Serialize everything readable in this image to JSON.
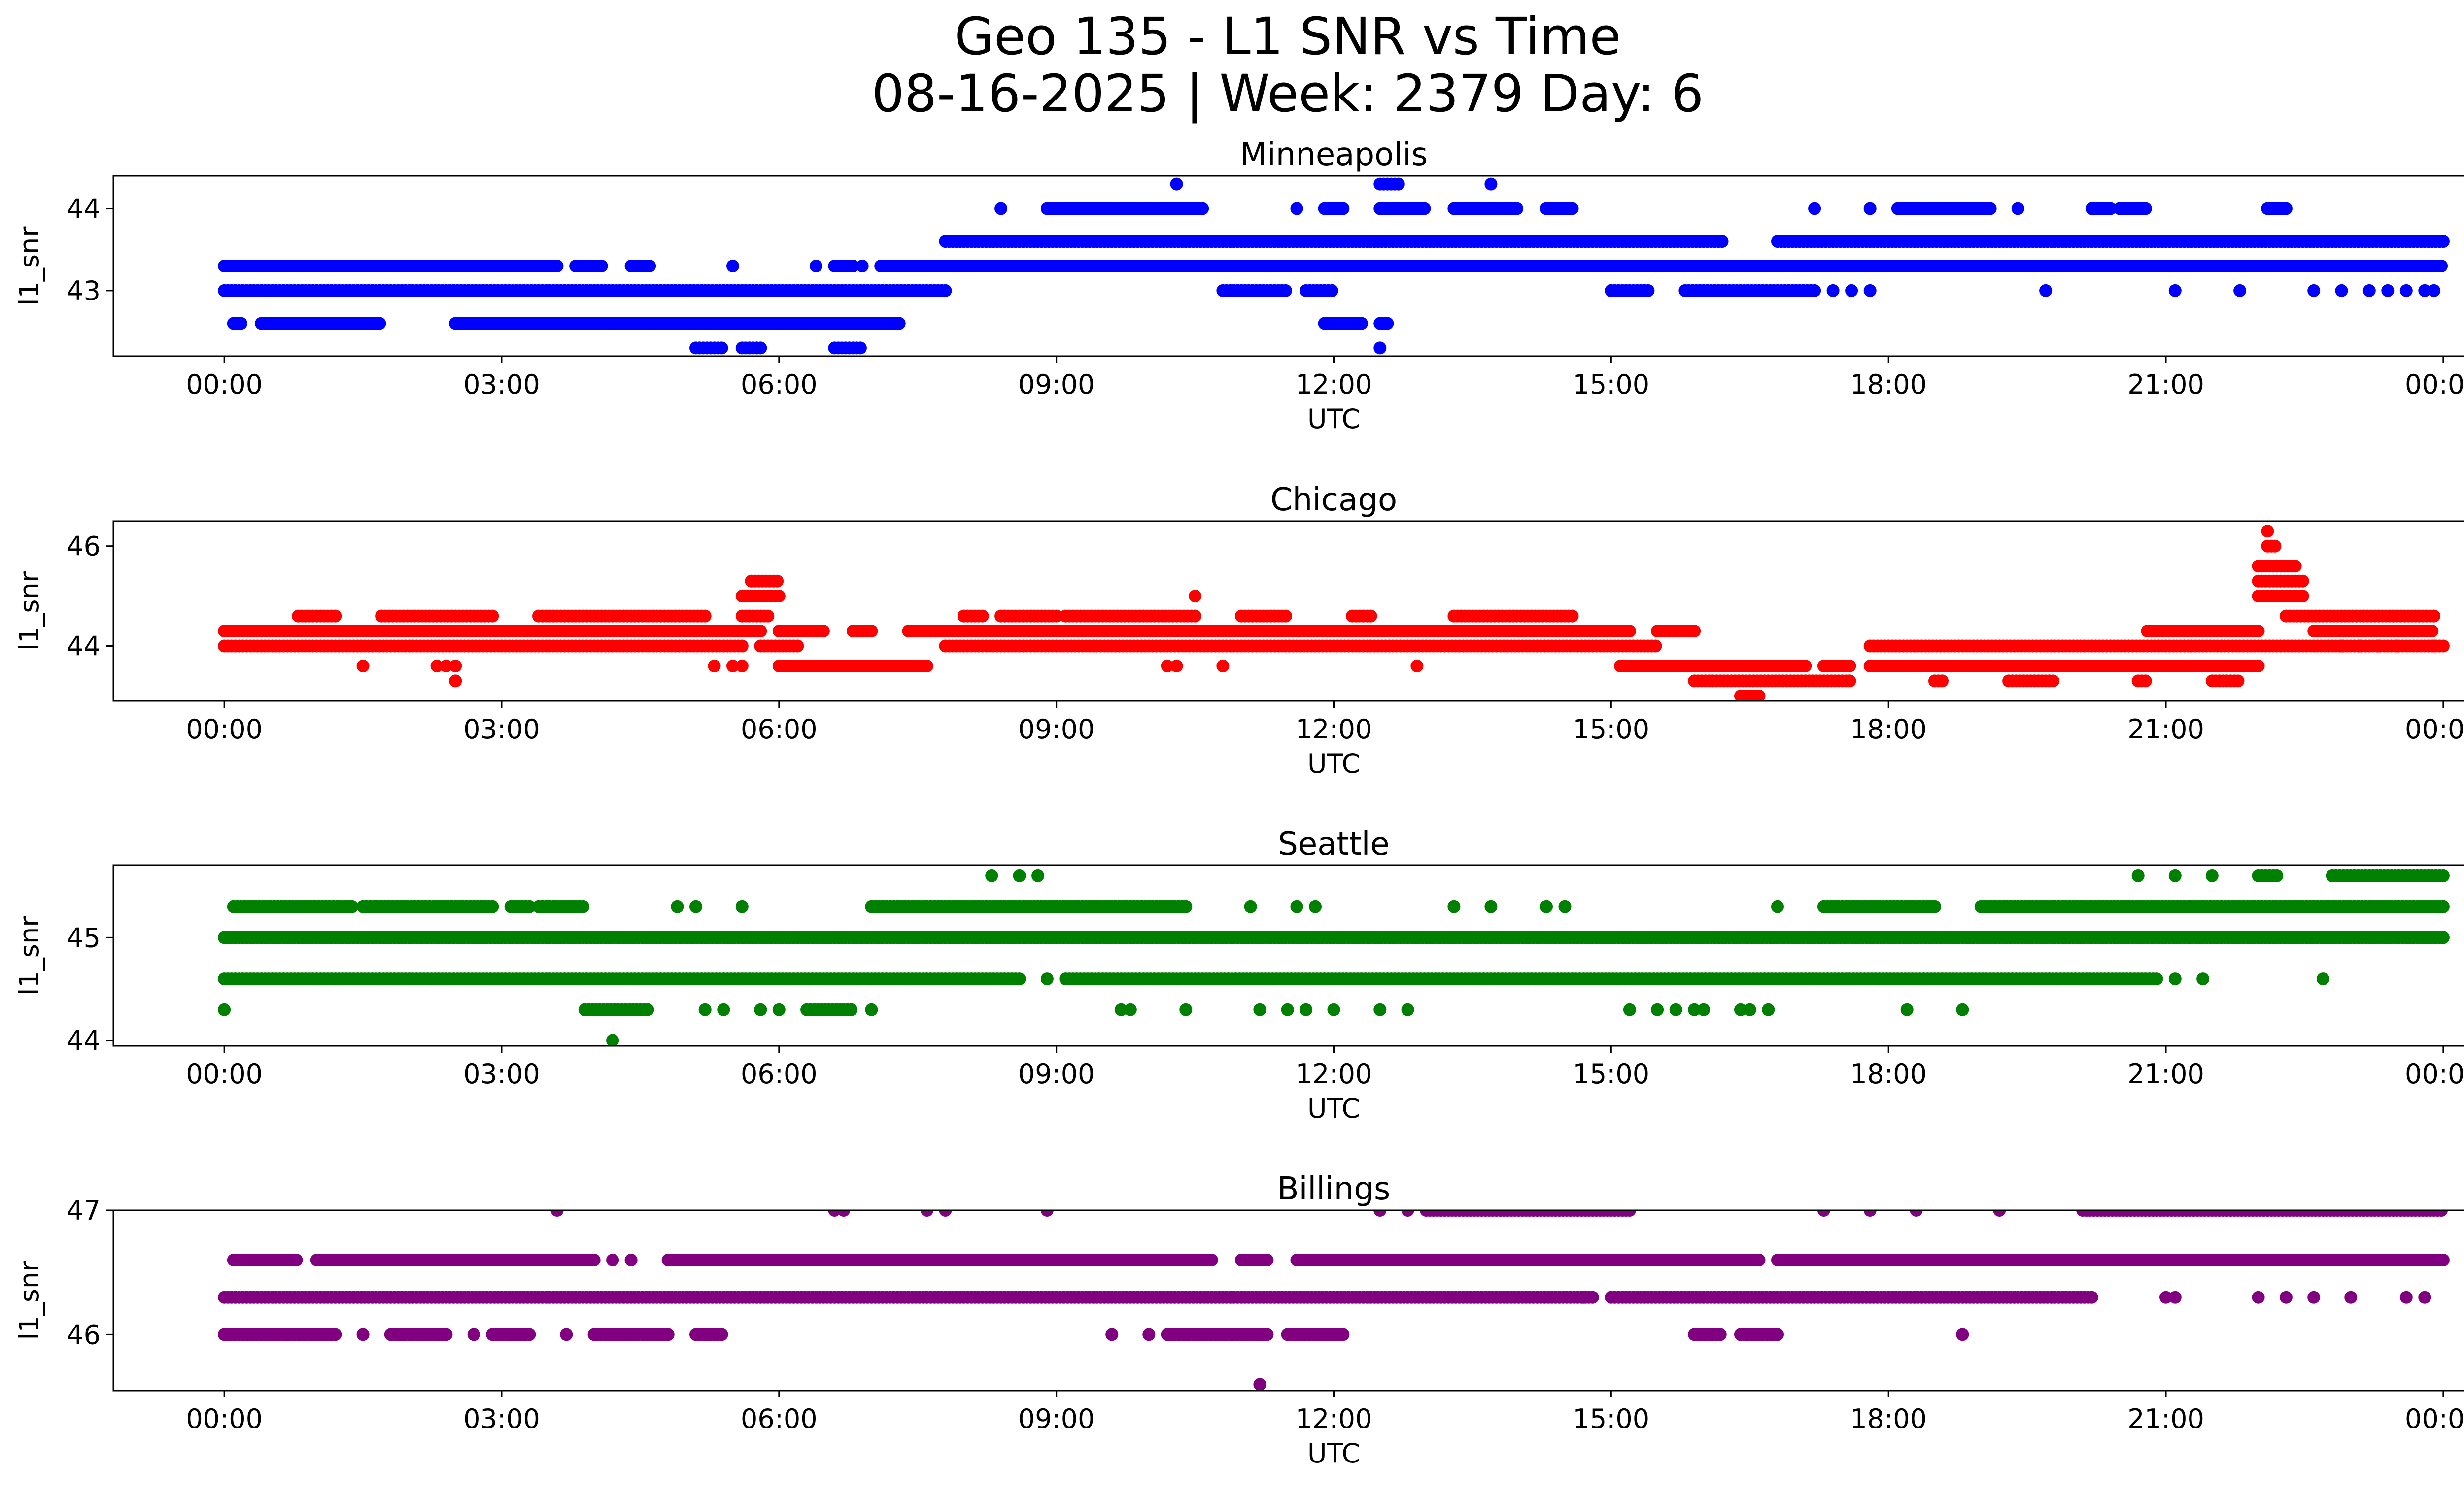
{
  "chart_data": {
    "type": "scatter",
    "title": "Geo 135 - L1 SNR vs Time",
    "subtitle": "08-16-2025 | Week: 2379 Day: 6",
    "xlabel": "UTC",
    "ylabel": "l1_snr",
    "x_unit": "hours UTC",
    "x_range": [
      -1.2,
      25.2
    ],
    "x_ticks": [
      0,
      3,
      6,
      9,
      12,
      15,
      18,
      21,
      24
    ],
    "x_tick_labels": [
      "00:00",
      "03:00",
      "06:00",
      "09:00",
      "12:00",
      "15:00",
      "18:00",
      "21:00",
      "00:00"
    ],
    "panels": [
      {
        "title": "Minneapolis",
        "color": "#0000ff",
        "ylim": [
          42.2,
          44.4
        ],
        "yticks": [
          43,
          44
        ],
        "ytick_labels": [
          "43",
          "44"
        ],
        "segments": [
          {
            "y": 43.3,
            "ranges": [
              [
                0,
                3.6
              ],
              [
                3.8,
                4.1
              ],
              [
                4.4,
                4.6
              ],
              [
                6.6,
                6.8
              ],
              [
                7.1,
                24
              ]
            ]
          },
          {
            "y": 43.0,
            "ranges": [
              [
                0,
                7.8
              ],
              [
                10.8,
                11.5
              ],
              [
                11.7,
                12.0
              ],
              [
                15.0,
                15.4
              ],
              [
                15.8,
                17.2
              ]
            ]
          },
          {
            "y": 42.6,
            "ranges": [
              [
                0.1,
                0.2
              ],
              [
                0.4,
                1.7
              ],
              [
                2.5,
                7.3
              ],
              [
                11.9,
                12.3
              ],
              [
                12.5,
                12.6
              ]
            ]
          },
          {
            "y": 42.3,
            "ranges": [
              [
                5.1,
                5.4
              ],
              [
                5.6,
                5.8
              ],
              [
                6.6,
                6.9
              ],
              [
                12.5,
                12.5
              ]
            ]
          },
          {
            "y": 43.6,
            "ranges": [
              [
                7.8,
                16.2
              ],
              [
                16.8,
                24
              ]
            ]
          },
          {
            "y": 44.0,
            "ranges": [
              [
                8.4,
                8.4
              ],
              [
                8.9,
                10.6
              ],
              [
                11.6,
                11.6
              ],
              [
                11.9,
                12.1
              ],
              [
                12.5,
                13.0
              ],
              [
                13.3,
                14.0
              ],
              [
                14.3,
                14.6
              ],
              [
                17.2,
                17.2
              ],
              [
                17.8,
                17.8
              ],
              [
                18.1,
                19.1
              ],
              [
                19.4,
                19.4
              ],
              [
                20.2,
                20.4
              ],
              [
                20.5,
                20.8
              ],
              [
                22.1,
                22.3
              ]
            ]
          },
          {
            "y": 44.3,
            "ranges": [
              [
                10.3,
                10.3
              ],
              [
                12.5,
                12.7
              ],
              [
                13.7,
                13.7
              ]
            ]
          }
        ],
        "scattered": [
          {
            "y": 43.0,
            "x": [
              17.4,
              17.6,
              17.8,
              19.7,
              21.1,
              21.8,
              22.6,
              22.9,
              23.2,
              23.4,
              23.6,
              23.8,
              23.9
            ]
          },
          {
            "y": 43.3,
            "x": [
              5.5,
              6.4,
              6.9
            ]
          }
        ]
      },
      {
        "title": "Chicago",
        "color": "#ff0000",
        "ylim": [
          42.9,
          46.5
        ],
        "yticks": [
          44,
          46
        ],
        "ytick_labels": [
          "44",
          "46"
        ],
        "segments": [
          {
            "y": 44.0,
            "ranges": [
              [
                0,
                5.6
              ],
              [
                5.8,
                6.2
              ],
              [
                7.8,
                15.5
              ],
              [
                17.8,
                24
              ]
            ]
          },
          {
            "y": 44.3,
            "ranges": [
              [
                0,
                5.8
              ],
              [
                6.0,
                6.5
              ],
              [
                6.8,
                7.0
              ],
              [
                7.4,
                15.2
              ],
              [
                15.5,
                15.9
              ],
              [
                20.8,
                22.0
              ],
              [
                22.6,
                23.9
              ]
            ]
          },
          {
            "y": 44.6,
            "ranges": [
              [
                0.8,
                1.2
              ],
              [
                1.7,
                2.9
              ],
              [
                3.4,
                5.2
              ],
              [
                5.6,
                5.9
              ],
              [
                8.0,
                8.2
              ],
              [
                8.4,
                9.0
              ],
              [
                9.1,
                10.5
              ],
              [
                11.0,
                11.5
              ],
              [
                12.2,
                12.4
              ],
              [
                13.3,
                14.6
              ],
              [
                22.3,
                23.9
              ]
            ]
          },
          {
            "y": 43.6,
            "ranges": [
              [
                6.0,
                7.6
              ],
              [
                15.1,
                17.1
              ],
              [
                17.3,
                17.6
              ],
              [
                17.8,
                22.0
              ]
            ]
          },
          {
            "y": 43.3,
            "ranges": [
              [
                15.9,
                17.6
              ],
              [
                18.5,
                18.6
              ],
              [
                19.3,
                19.8
              ],
              [
                20.7,
                20.8
              ],
              [
                21.5,
                21.8
              ]
            ]
          },
          {
            "y": 45.3,
            "ranges": [
              [
                5.7,
                6.0
              ]
            ]
          },
          {
            "y": 45.0,
            "ranges": [
              [
                5.6,
                6.0
              ],
              [
                22.0,
                22.5
              ]
            ]
          },
          {
            "y": 45.3,
            "ranges": [
              [
                22.0,
                22.5
              ]
            ]
          },
          {
            "y": 45.6,
            "ranges": [
              [
                22.0,
                22.4
              ]
            ]
          },
          {
            "y": 46.0,
            "ranges": [
              [
                22.1,
                22.2
              ]
            ]
          },
          {
            "y": 43.0,
            "ranges": [
              [
                16.4,
                16.6
              ]
            ]
          }
        ],
        "scattered": [
          {
            "y": 43.6,
            "x": [
              1.5,
              2.3,
              2.4,
              2.5,
              5.3,
              5.5,
              5.6,
              10.2,
              10.3,
              10.8,
              12.9
            ]
          },
          {
            "y": 43.3,
            "x": [
              2.5
            ]
          },
          {
            "y": 45.0,
            "x": [
              10.5
            ]
          },
          {
            "y": 46.3,
            "x": [
              22.1
            ]
          },
          {
            "y": 44.0,
            "x": [
              22.9,
              23.1,
              23.3,
              23.5,
              23.9
            ]
          }
        ]
      },
      {
        "title": "Seattle",
        "color": "#008000",
        "ylim": [
          43.95,
          45.7
        ],
        "yticks": [
          44,
          45
        ],
        "ytick_labels": [
          "44",
          "45"
        ],
        "segments": [
          {
            "y": 45.0,
            "ranges": [
              [
                0,
                24
              ]
            ]
          },
          {
            "y": 45.3,
            "ranges": [
              [
                0.1,
                1.4
              ],
              [
                1.5,
                2.9
              ],
              [
                3.1,
                3.3
              ],
              [
                3.4,
                3.9
              ],
              [
                7.0,
                10.4
              ],
              [
                17.3,
                18.5
              ],
              [
                19.0,
                24
              ]
            ]
          },
          {
            "y": 44.6,
            "ranges": [
              [
                0,
                8.6
              ],
              [
                9.1,
                20.9
              ]
            ]
          },
          {
            "y": 44.3,
            "ranges": [
              [
                3.9,
                4.6
              ],
              [
                6.3,
                6.8
              ]
            ]
          },
          {
            "y": 45.6,
            "ranges": [
              [
                20.7,
                20.7
              ],
              [
                22.0,
                22.2
              ],
              [
                22.8,
                24
              ]
            ]
          }
        ],
        "scattered": [
          {
            "y": 44.3,
            "x": [
              0,
              5.2,
              5.4,
              5.8,
              6.0,
              7.0,
              9.7,
              9.8,
              10.4,
              11.2,
              11.5,
              11.7,
              12.0,
              12.5,
              12.8,
              15.2,
              15.5,
              15.7,
              15.9,
              16.0,
              16.4,
              16.5,
              16.7,
              18.2,
              18.8
            ]
          },
          {
            "y": 45.3,
            "x": [
              4.9,
              5.1,
              5.6,
              11.1,
              11.6,
              11.8,
              13.3,
              13.7,
              14.3,
              14.5,
              16.8
            ]
          },
          {
            "y": 45.6,
            "x": [
              8.3,
              8.6,
              8.8,
              21.1,
              21.5
            ]
          },
          {
            "y": 44.6,
            "x": [
              8.9,
              21.1,
              21.4,
              22.7
            ]
          },
          {
            "y": 44.0,
            "x": [
              4.2
            ]
          }
        ]
      },
      {
        "title": "Billings",
        "color": "#800080",
        "ylim": [
          45.55,
          47.0
        ],
        "yticks": [
          46,
          47
        ],
        "ytick_labels": [
          "46",
          "47"
        ],
        "segments": [
          {
            "y": 46.3,
            "ranges": [
              [
                0,
                14.8
              ],
              [
                15.0,
                20.2
              ]
            ]
          },
          {
            "y": 46.6,
            "ranges": [
              [
                0.1,
                0.8
              ],
              [
                1.0,
                4.0
              ],
              [
                4.8,
                10.7
              ],
              [
                11.0,
                11.3
              ],
              [
                11.6,
                16.6
              ],
              [
                16.8,
                24
              ]
            ]
          },
          {
            "y": 46.0,
            "ranges": [
              [
                0,
                1.2
              ],
              [
                1.8,
                2.4
              ],
              [
                2.9,
                3.3
              ],
              [
                4.0,
                4.8
              ],
              [
                5.1,
                5.4
              ],
              [
                10.2,
                11.3
              ],
              [
                11.5,
                12.1
              ],
              [
                15.9,
                16.2
              ],
              [
                16.4,
                16.8
              ]
            ]
          },
          {
            "y": 47.0,
            "ranges": [
              [
                13.0,
                15.2
              ],
              [
                20.1,
                24
              ]
            ]
          }
        ],
        "scattered": [
          {
            "y": 46.0,
            "x": [
              1.5,
              1.9,
              2.7,
              3.7,
              9.6,
              10.0,
              18.8
            ]
          },
          {
            "y": 47.0,
            "x": [
              3.6,
              6.6,
              6.7,
              7.6,
              7.8,
              8.9,
              12.5,
              12.8,
              17.3,
              17.8,
              18.3,
              19.2
            ]
          },
          {
            "y": 46.3,
            "x": [
              14.7,
              21.0,
              21.1,
              22.0,
              22.3,
              22.6,
              23.0,
              23.6,
              23.8
            ]
          },
          {
            "y": 46.6,
            "x": [
              4.2,
              4.4
            ]
          },
          {
            "y": 45.6,
            "x": [
              11.2
            ]
          }
        ]
      }
    ]
  }
}
